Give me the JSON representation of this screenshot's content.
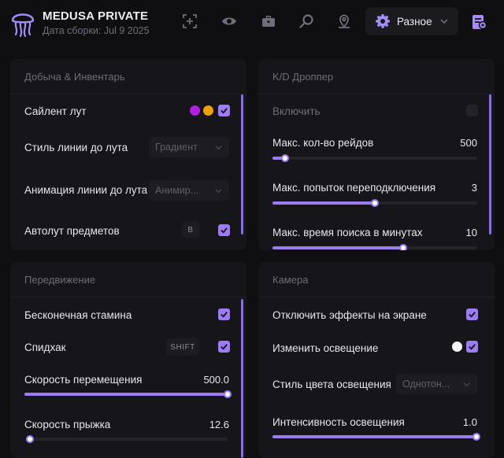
{
  "header": {
    "title": "MEDUSA PRIVATE",
    "subtitle": "Дата сборки: Jul 9 2025",
    "nav_icons": [
      "crosshair-icon",
      "eye-icon",
      "briefcase-icon",
      "search-icon",
      "location-pin-icon"
    ],
    "dropdown_label": "Разное",
    "accent": "#9b7cf5"
  },
  "loot_panel": {
    "title": "Добыча & Инвентарь",
    "rows": {
      "salient_loot": {
        "label": "Сайлент лут",
        "checked": true,
        "colors": [
          "#b020e0",
          "#f0a000"
        ]
      },
      "line_style": {
        "label": "Стиль линии до лута",
        "value": "Градиент"
      },
      "line_anim": {
        "label": "Анимация линии до лута",
        "value": "Анимир..."
      },
      "autoloot": {
        "label": "Автолут предметов",
        "key": "B",
        "checked": true
      }
    }
  },
  "kd_panel": {
    "title": "K/D Дроппер",
    "rows": {
      "enable": {
        "label": "Включить",
        "checked": false
      },
      "max_raids": {
        "label": "Макс. кол-во рейдов",
        "value": "500",
        "fraction": 0.06
      },
      "reconnect": {
        "label": "Макс. попыток переподключения",
        "value": "3",
        "fraction": 0.5
      },
      "search_time": {
        "label": "Макс. время поиска в минутах",
        "value": "10",
        "fraction": 0.64
      }
    }
  },
  "move_panel": {
    "title": "Передвижение",
    "rows": {
      "stamina": {
        "label": "Бесконечная стамина",
        "checked": true
      },
      "speedhack": {
        "label": "Спидхак",
        "key": "SHIFT",
        "checked": true
      },
      "move_speed": {
        "label": "Скорость перемещения",
        "value": "500.0",
        "fraction": 1.0
      },
      "jump_speed": {
        "label": "Скорость прыжка",
        "value": "12.6",
        "fraction": 0.02
      }
    }
  },
  "camera_panel": {
    "title": "Камера",
    "rows": {
      "screen_fx": {
        "label": "Отключить эффекты на экране",
        "checked": true
      },
      "lighting": {
        "label": "Изменить освещение",
        "checked": true,
        "color": "#f4f4f4"
      },
      "light_style": {
        "label": "Стиль цвета освещения",
        "value": "Однотон..."
      },
      "intensity": {
        "label": "Интенсивность освещения",
        "value": "1.0",
        "fraction": 1.0
      }
    }
  }
}
